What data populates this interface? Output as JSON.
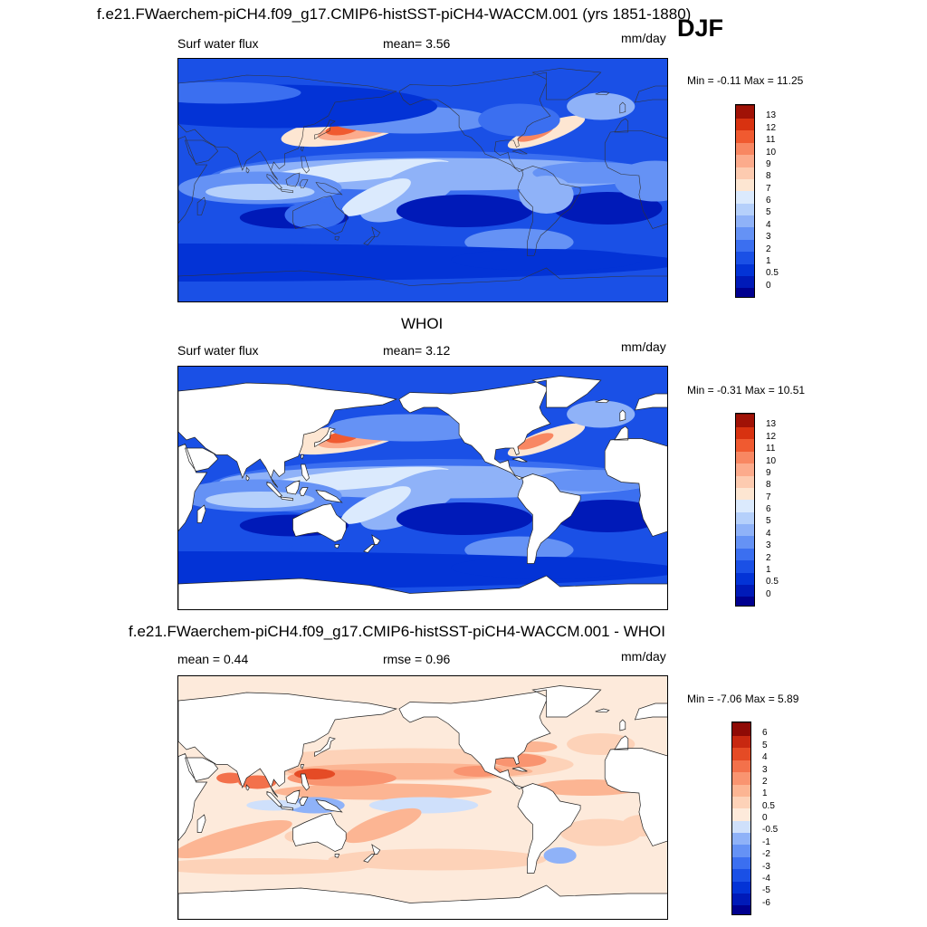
{
  "figure": {
    "main_title": "f.e21.FWaerchem-piCH4.f09_g17.CMIP6-histSST-piCH4-WACCM.001 (yrs 1851-1880)",
    "season": "DJF"
  },
  "chart_data": [
    {
      "type": "heatmap",
      "title": "",
      "left_label": "Surf water flux",
      "center_label": "mean=   3.56",
      "units": "mm/day",
      "min_max": "Min =  -0.11 Max =  11.25",
      "mean": 3.56,
      "min": -0.11,
      "max": 11.25,
      "colorbar_levels": [
        "0",
        "0.5",
        "1",
        "2",
        "3",
        "4",
        "5",
        "6",
        "7",
        "8",
        "9",
        "10",
        "11",
        "12",
        "13"
      ],
      "colors": [
        "#00008f",
        "#001ab8",
        "#0333d6",
        "#1a50e6",
        "#3b6ff0",
        "#6592f5",
        "#8fb2f8",
        "#b5d0fb",
        "#dbeafd",
        "#fde6d2",
        "#fdcbb0",
        "#fcab8c",
        "#f88762",
        "#f05a30",
        "#d83210",
        "#a01206"
      ]
    },
    {
      "type": "heatmap",
      "title": "WHOI",
      "left_label": "Surf water flux",
      "center_label": "mean=   3.12",
      "units": "mm/day",
      "min_max": "Min =  -0.31 Max =  10.51",
      "mean": 3.12,
      "min": -0.31,
      "max": 10.51,
      "colorbar_levels": [
        "0",
        "0.5",
        "1",
        "2",
        "3",
        "4",
        "5",
        "6",
        "7",
        "8",
        "9",
        "10",
        "11",
        "12",
        "13"
      ],
      "colors": [
        "#00008f",
        "#001ab8",
        "#0333d6",
        "#1a50e6",
        "#3b6ff0",
        "#6592f5",
        "#8fb2f8",
        "#b5d0fb",
        "#dbeafd",
        "#fde6d2",
        "#fdcbb0",
        "#fcab8c",
        "#f88762",
        "#f05a30",
        "#d83210",
        "#a01206"
      ]
    },
    {
      "type": "heatmap",
      "title": "f.e21.FWaerchem-piCH4.f09_g17.CMIP6-histSST-piCH4-WACCM.001 - WHOI",
      "left_label": "mean =   0.44",
      "center_label": "rmse =   0.96",
      "units": "mm/day",
      "min_max": "Min =  -7.06 Max =   5.89",
      "mean": 0.44,
      "rmse": 0.96,
      "min": -7.06,
      "max": 5.89,
      "colorbar_levels": [
        "-6",
        "-5",
        "-4",
        "-3",
        "-2",
        "-1",
        "-0.5",
        "0",
        "0.5",
        "1",
        "2",
        "3",
        "4",
        "5",
        "6"
      ],
      "colors": [
        "#00008f",
        "#001ab8",
        "#0333d6",
        "#1a50e6",
        "#3b6ff0",
        "#6592f5",
        "#8fb2f8",
        "#cfe0fb",
        "#fdeadb",
        "#fdd2b8",
        "#fcb593",
        "#f99470",
        "#f3714b",
        "#e54b25",
        "#c82810",
        "#8f0a05"
      ]
    }
  ]
}
